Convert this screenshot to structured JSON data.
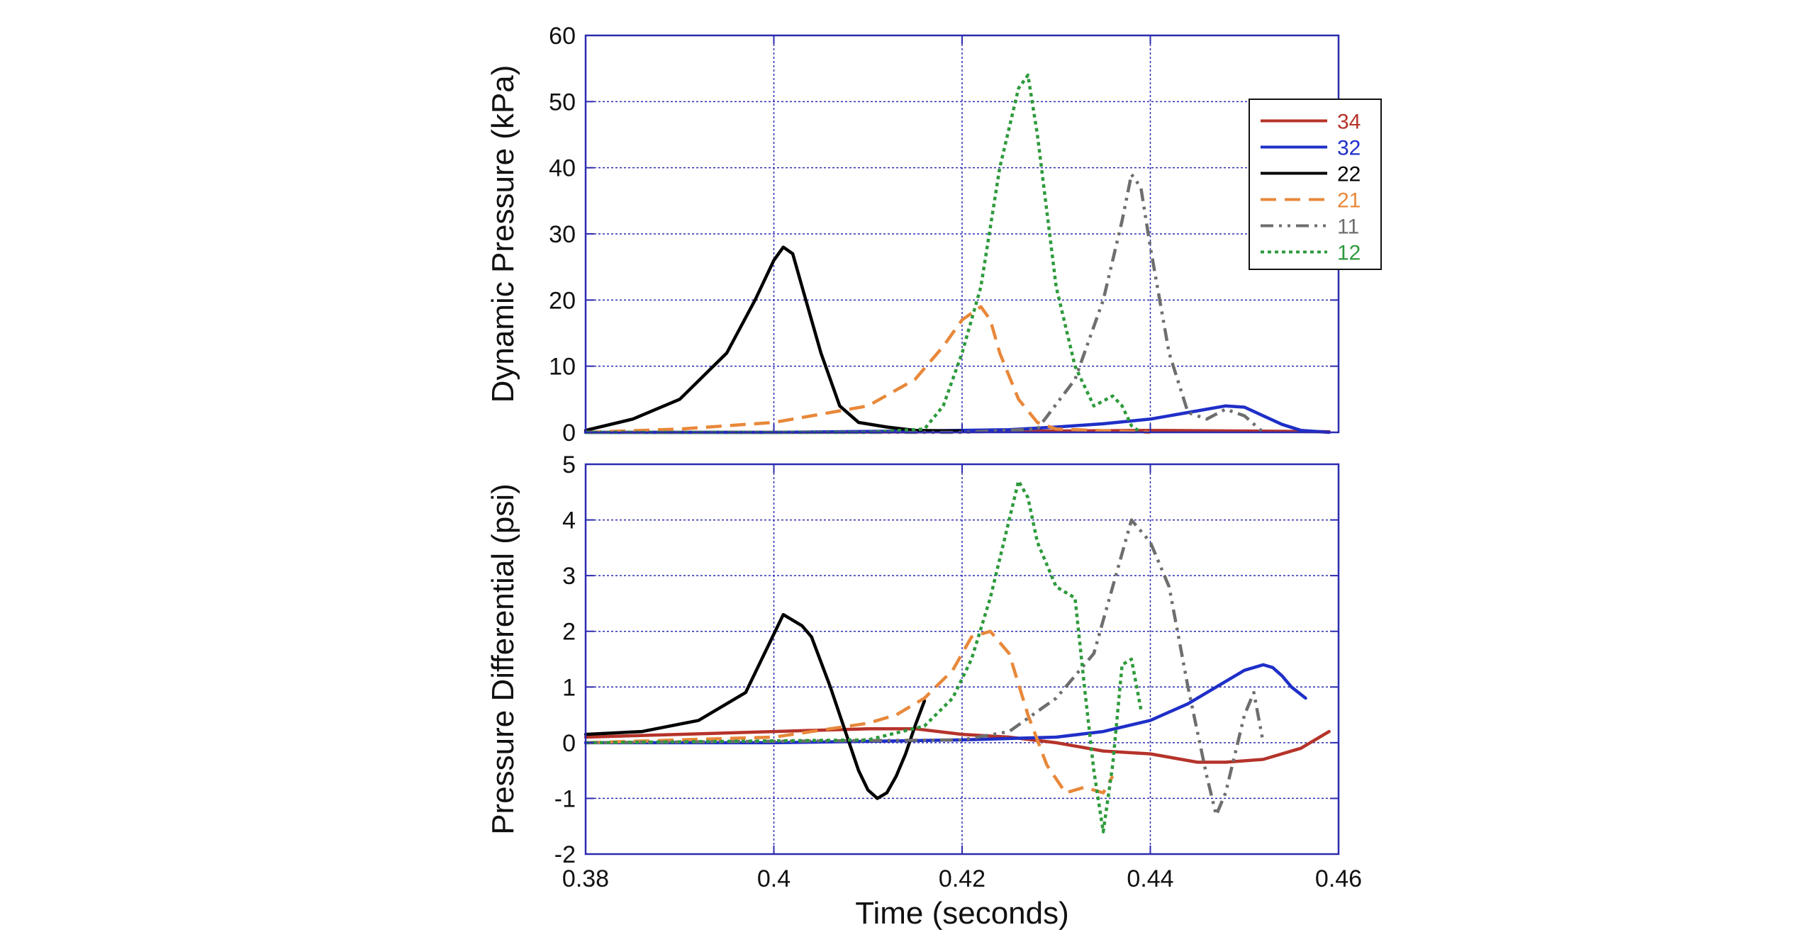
{
  "chart_data": [
    {
      "type": "line",
      "ylabel": "Dynamic Pressure (kPa)",
      "xlabel": "",
      "xlim": [
        0.38,
        0.46
      ],
      "ylim": [
        0,
        60
      ],
      "x_ticks": [
        "0.38",
        "0.4",
        "0.42",
        "0.44",
        "0.46"
      ],
      "y_ticks": [
        "0",
        "10",
        "20",
        "30",
        "40",
        "50",
        "60"
      ],
      "grid": true,
      "legend": "top-right",
      "series": [
        {
          "name": "34",
          "color": "#b5332a",
          "dash": "solid",
          "x": [
            0.38,
            0.4,
            0.42,
            0.43,
            0.44,
            0.45,
            0.459
          ],
          "y": [
            0,
            0,
            0.1,
            0.2,
            0.3,
            0.2,
            0.1
          ]
        },
        {
          "name": "32",
          "color": "#1f2fc8",
          "dash": "solid",
          "x": [
            0.38,
            0.4,
            0.415,
            0.425,
            0.43,
            0.435,
            0.44,
            0.444,
            0.448,
            0.45,
            0.452,
            0.454,
            0.456,
            0.459
          ],
          "y": [
            0,
            0,
            0.2,
            0.4,
            0.8,
            1.3,
            2.0,
            3.0,
            4.0,
            3.8,
            2.5,
            1.2,
            0.3,
            0
          ]
        },
        {
          "name": "22",
          "color": "#000000",
          "dash": "solid",
          "x": [
            0.38,
            0.385,
            0.39,
            0.395,
            0.398,
            0.4,
            0.401,
            0.402,
            0.403,
            0.405,
            0.407,
            0.409,
            0.412,
            0.415,
            0.42
          ],
          "y": [
            0.3,
            2,
            5,
            12,
            20,
            26,
            28,
            27,
            22,
            12,
            4,
            1.5,
            0.8,
            0.3,
            0.2
          ]
        },
        {
          "name": "21",
          "color": "#e8883a",
          "dash": "dash",
          "x": [
            0.38,
            0.39,
            0.4,
            0.41,
            0.415,
            0.418,
            0.42,
            0.422,
            0.423,
            0.424,
            0.426,
            0.428,
            0.43,
            0.44
          ],
          "y": [
            0,
            0.5,
            1.5,
            4,
            8,
            13,
            17,
            19,
            17,
            12,
            5,
            1.5,
            0.5,
            0
          ]
        },
        {
          "name": "11",
          "color": "#6e6e6e",
          "dash": "dashdot",
          "x": [
            0.38,
            0.42,
            0.428,
            0.432,
            0.435,
            0.437,
            0.438,
            0.439,
            0.44,
            0.442,
            0.444,
            0.446,
            0.448,
            0.45,
            0.452
          ],
          "y": [
            0,
            0,
            0.5,
            8,
            20,
            32,
            39,
            37,
            28,
            12,
            3,
            2,
            3.5,
            2.5,
            0
          ]
        },
        {
          "name": "12",
          "color": "#2e9a3c",
          "dash": "dot",
          "x": [
            0.38,
            0.41,
            0.416,
            0.418,
            0.42,
            0.422,
            0.424,
            0.426,
            0.427,
            0.428,
            0.43,
            0.432,
            0.434,
            0.436,
            0.437,
            0.438,
            0.439
          ],
          "y": [
            0,
            0,
            0.5,
            4,
            12,
            22,
            40,
            52,
            54,
            45,
            22,
            10,
            4,
            5.5,
            4,
            1,
            0
          ]
        }
      ]
    },
    {
      "type": "line",
      "ylabel": "Pressure Differential (psi)",
      "xlabel": "Time (seconds)",
      "xlim": [
        0.38,
        0.46
      ],
      "ylim": [
        -2,
        5
      ],
      "x_ticks": [
        "0.38",
        "0.4",
        "0.42",
        "0.44",
        "0.46"
      ],
      "y_ticks": [
        "-2",
        "-1",
        "0",
        "1",
        "2",
        "3",
        "4",
        "5"
      ],
      "grid": true,
      "series": [
        {
          "name": "34",
          "color": "#b5332a",
          "dash": "solid",
          "x": [
            0.38,
            0.39,
            0.4,
            0.41,
            0.415,
            0.42,
            0.425,
            0.43,
            0.435,
            0.44,
            0.445,
            0.448,
            0.452,
            0.456,
            0.459
          ],
          "y": [
            0.1,
            0.15,
            0.2,
            0.25,
            0.25,
            0.15,
            0.1,
            0.0,
            -0.15,
            -0.2,
            -0.35,
            -0.35,
            -0.3,
            -0.1,
            0.2
          ]
        },
        {
          "name": "32",
          "color": "#1f2fc8",
          "dash": "solid",
          "x": [
            0.38,
            0.4,
            0.42,
            0.43,
            0.435,
            0.44,
            0.444,
            0.448,
            0.45,
            0.452,
            0.453,
            0.454,
            0.455,
            0.4565
          ],
          "y": [
            0,
            0,
            0.05,
            0.1,
            0.2,
            0.4,
            0.7,
            1.1,
            1.3,
            1.4,
            1.35,
            1.2,
            1.0,
            0.8
          ]
        },
        {
          "name": "22",
          "color": "#000000",
          "dash": "solid",
          "x": [
            0.38,
            0.386,
            0.392,
            0.397,
            0.399,
            0.401,
            0.403,
            0.404,
            0.406,
            0.408,
            0.409,
            0.41,
            0.411,
            0.412,
            0.413,
            0.414,
            0.415,
            0.416
          ],
          "y": [
            0.15,
            0.2,
            0.4,
            0.9,
            1.6,
            2.3,
            2.1,
            1.9,
            1.0,
            0.0,
            -0.5,
            -0.85,
            -1.0,
            -0.9,
            -0.6,
            -0.2,
            0.3,
            0.75
          ]
        },
        {
          "name": "21",
          "color": "#e8883a",
          "dash": "dash",
          "x": [
            0.38,
            0.39,
            0.4,
            0.41,
            0.413,
            0.416,
            0.419,
            0.421,
            0.423,
            0.425,
            0.427,
            0.429,
            0.431,
            0.433,
            0.435,
            0.436
          ],
          "y": [
            0,
            0.05,
            0.1,
            0.35,
            0.5,
            0.8,
            1.3,
            1.9,
            2.0,
            1.6,
            0.5,
            -0.4,
            -0.9,
            -0.8,
            -0.9,
            -0.6
          ]
        },
        {
          "name": "11",
          "color": "#6e6e6e",
          "dash": "dashdot",
          "x": [
            0.38,
            0.42,
            0.425,
            0.43,
            0.434,
            0.436,
            0.438,
            0.439,
            0.44,
            0.442,
            0.444,
            0.446,
            0.447,
            0.448,
            0.45,
            0.451,
            0.452
          ],
          "y": [
            0,
            0.05,
            0.2,
            0.8,
            1.6,
            2.8,
            4.0,
            3.8,
            3.6,
            2.8,
            1.0,
            -0.6,
            -1.3,
            -0.9,
            0.5,
            0.9,
            0.0
          ]
        },
        {
          "name": "12",
          "color": "#2e9a3c",
          "dash": "dot",
          "x": [
            0.38,
            0.41,
            0.416,
            0.419,
            0.421,
            0.423,
            0.425,
            0.426,
            0.427,
            0.428,
            0.43,
            0.432,
            0.433,
            0.434,
            0.435,
            0.436,
            0.437,
            0.438,
            0.439
          ],
          "y": [
            0,
            0.05,
            0.3,
            0.8,
            1.5,
            2.6,
            4.0,
            4.7,
            4.4,
            3.6,
            2.8,
            2.6,
            1.0,
            -0.5,
            -1.6,
            -0.4,
            1.4,
            1.5,
            0.6
          ]
        }
      ]
    }
  ]
}
